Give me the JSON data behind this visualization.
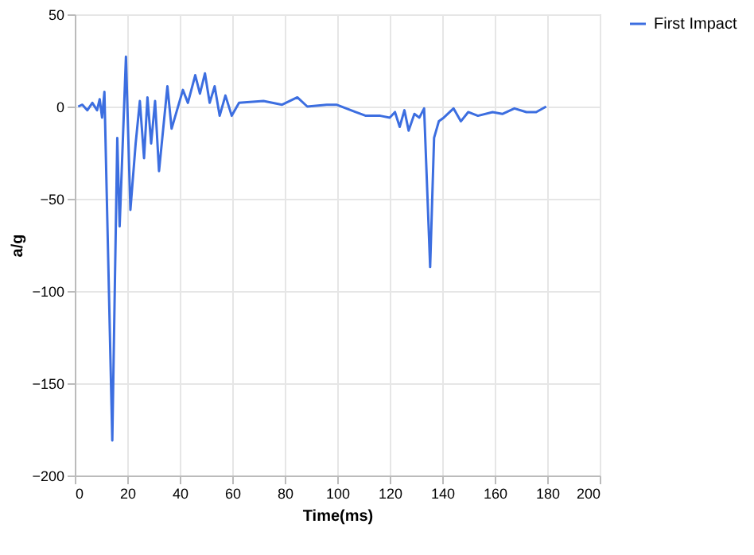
{
  "chart_data": {
    "type": "line",
    "xlabel": "Time(ms)",
    "ylabel": "a/g",
    "xlim": [
      0,
      200
    ],
    "xticks": [
      0,
      20,
      40,
      60,
      80,
      100,
      120,
      140,
      160,
      180,
      200
    ],
    "ylim": [
      -200,
      50
    ],
    "yticks": [
      -200,
      -150,
      -100,
      -50,
      0,
      50
    ],
    "grid": true,
    "legend": "right",
    "marker": "none",
    "line_style": "solid",
    "series": [
      {
        "name": "First Impact",
        "color": "#3c6ee0",
        "x": [
          1.3,
          2.9,
          4.8,
          6.7,
          8.5,
          9.5,
          10.4,
          11.3,
          14.3,
          16.2,
          17.1,
          19.5,
          21.2,
          23.2,
          24.8,
          26.4,
          27.7,
          29.1,
          30.6,
          32.1,
          35.3,
          36.9,
          41.2,
          43.1,
          45.9,
          47.7,
          49.6,
          51.4,
          53.3,
          55.2,
          57.4,
          59.8,
          62.6,
          71.9,
          79,
          84.8,
          88.6,
          96,
          99.7,
          107,
          110.9,
          116.4,
          120,
          122,
          123.8,
          125.6,
          127.2,
          129.4,
          131.3,
          133.1,
          135.4,
          136.9,
          138.7,
          140.6,
          144.3,
          147.1,
          149.9,
          153.6,
          159.2,
          162.9,
          167.5,
          172.1,
          175.8,
          179.6
        ],
        "values": [
          0,
          1,
          -2,
          2,
          -2,
          4,
          -6,
          8,
          -181,
          -17,
          -65,
          27,
          -56,
          -20,
          3,
          -28,
          5,
          -20,
          3,
          -35,
          11,
          -12,
          9,
          2,
          17,
          7,
          18,
          2,
          11,
          -5,
          6,
          -5,
          2,
          3,
          1,
          5,
          0,
          1,
          1,
          -3,
          -5,
          -5,
          -6,
          -3,
          -11,
          -2,
          -13,
          -4,
          -6,
          -1,
          -87,
          -17,
          -8,
          -6,
          -1,
          -8,
          -3,
          -5,
          -3,
          -4,
          -1,
          -3,
          -3,
          0
        ]
      }
    ]
  }
}
